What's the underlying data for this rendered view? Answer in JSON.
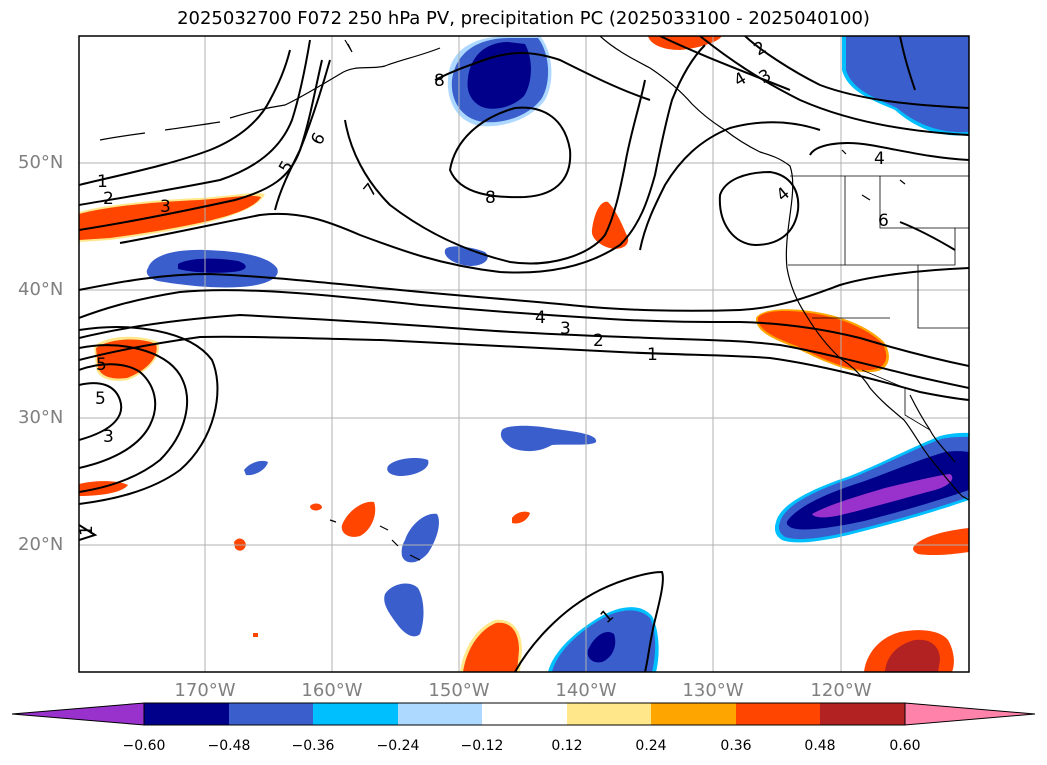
{
  "title": "2025032700 F072 250 hPa PV, precipitation PC (2025033100 - 2025040100)",
  "lat_labels": [
    "50°N",
    "40°N",
    "30°N",
    "20°N"
  ],
  "lon_labels": [
    "170°W",
    "160°W",
    "150°W",
    "140°W",
    "130°W",
    "120°W"
  ],
  "colorbar": {
    "ticks": [
      "−0.60",
      "−0.48",
      "−0.36",
      "−0.24",
      "−0.12",
      "0.12",
      "0.24",
      "0.36",
      "0.48",
      "0.60"
    ],
    "colors": [
      "#9932cc",
      "#00008b",
      "#3a5fcd",
      "#00bfff",
      "#add8ff",
      "#ffffff",
      "#ffe78a",
      "#ffa500",
      "#ff4500",
      "#b22222",
      "#ff82ab"
    ]
  },
  "contour_labels": [
    "8",
    "8",
    "7",
    "6",
    "5",
    "4",
    "3",
    "2",
    "1",
    "4",
    "3",
    "2",
    "1",
    "5",
    "4",
    "3",
    "2",
    "6",
    "5",
    "3",
    "4",
    "1",
    "1"
  ],
  "map_extent": {
    "lon_min": -180,
    "lon_max": -110,
    "lat_min": 10,
    "lat_max": 60
  }
}
